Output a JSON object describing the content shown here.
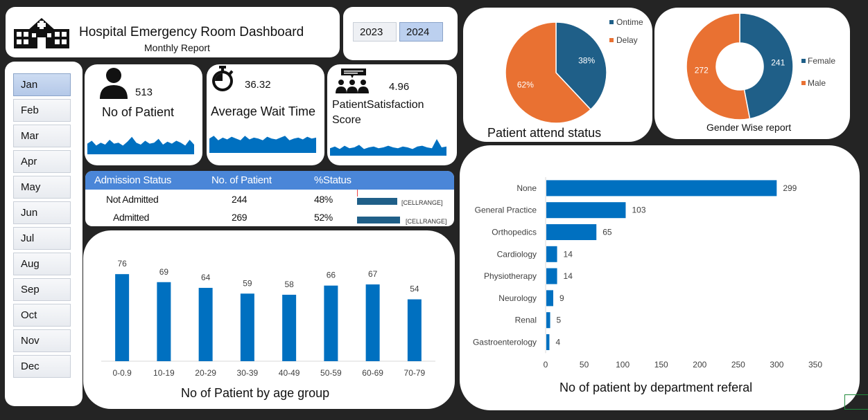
{
  "header": {
    "title": "Hospital Emergency Room Dashboard",
    "subtitle": "Monthly Report",
    "icon": "hospital-icon"
  },
  "years": [
    "2023",
    "2024"
  ],
  "selected_year": "2024",
  "months": [
    "Jan",
    "Feb",
    "Mar",
    "Apr",
    "May",
    "Jun",
    "Jul",
    "Aug",
    "Sep",
    "Oct",
    "Nov",
    "Dec"
  ],
  "selected_month": "Jan",
  "kpis": {
    "patients": {
      "value": "513",
      "label": "No of Patient",
      "icon": "person-icon"
    },
    "wait_time": {
      "value": "36.32",
      "label": "Average Wait Time",
      "icon": "stopwatch-icon"
    },
    "satisfaction": {
      "value": "4.96",
      "label_line1": "PatientSatisfaction",
      "label_line2": "Score",
      "icon": "group-feedback-icon"
    }
  },
  "sparklines": {
    "patients": [
      0.55,
      0.7,
      0.45,
      0.6,
      0.5,
      0.75,
      0.55,
      0.6,
      0.45,
      0.65,
      0.9,
      0.6,
      0.5,
      0.7,
      0.55,
      0.6,
      0.8,
      0.5,
      0.65,
      0.55,
      0.7,
      0.6,
      0.45,
      0.75,
      0.5
    ],
    "wait_time": [
      0.8,
      0.95,
      0.7,
      0.85,
      0.75,
      0.9,
      0.8,
      0.7,
      0.95,
      0.75,
      0.85,
      0.8,
      0.7,
      0.9,
      0.8,
      0.75,
      0.85,
      0.95,
      0.7,
      0.8,
      0.85,
      0.75,
      0.9,
      0.8,
      0.85
    ],
    "satisfaction": [
      0.45,
      0.55,
      0.4,
      0.6,
      0.45,
      0.5,
      0.65,
      0.4,
      0.5,
      0.55,
      0.45,
      0.5,
      0.6,
      0.5,
      0.45,
      0.55,
      0.5,
      0.4,
      0.55,
      0.6,
      0.5,
      0.45,
      1.0,
      0.5,
      0.55
    ]
  },
  "admission": {
    "headers": [
      "Admission Status",
      "No. of Patient",
      "%Status"
    ],
    "rows": [
      {
        "status": "Not Admitted",
        "count": "244",
        "pct": "48%",
        "fraction": 0.48,
        "range": "[CELLRANGE]"
      },
      {
        "status": "Admitted",
        "count": "269",
        "pct": "52%",
        "fraction": 0.52,
        "range": "[CELLRANGE]"
      }
    ]
  },
  "colors": {
    "blue": "#0070c0",
    "teal": "#1f5f88",
    "orange": "#e97132",
    "header_blue": "#4a86d8"
  },
  "chart_data": [
    {
      "type": "bar",
      "title": "No of Patient by age group",
      "categories": [
        "0-0.9",
        "10-19",
        "20-29",
        "30-39",
        "40-49",
        "50-59",
        "60-69",
        "70-79"
      ],
      "values": [
        76,
        69,
        64,
        59,
        58,
        66,
        67,
        54
      ],
      "ylim": [
        0,
        90
      ]
    },
    {
      "type": "pie",
      "title": "Patient attend status",
      "categories": [
        "Ontime",
        "Delay"
      ],
      "values": [
        38,
        62
      ],
      "labels": [
        "38%",
        "62%"
      ],
      "legend": "right"
    },
    {
      "type": "pie",
      "title": "Gender Wise report",
      "donut": true,
      "categories": [
        "Female",
        "Male"
      ],
      "values": [
        241,
        272
      ],
      "labels": [
        "241",
        "272"
      ],
      "legend": "right"
    },
    {
      "type": "bar",
      "orientation": "horizontal",
      "title": "No of patient by department referal",
      "categories": [
        "None",
        "General Practice",
        "Orthopedics",
        "Cardiology",
        "Physiotherapy",
        "Neurology",
        "Renal",
        "Gastroenterology"
      ],
      "values": [
        299,
        103,
        65,
        14,
        14,
        9,
        5,
        4
      ],
      "xlim": [
        0,
        350
      ],
      "xticks": [
        0,
        50,
        100,
        150,
        200,
        250,
        300,
        350
      ]
    }
  ]
}
